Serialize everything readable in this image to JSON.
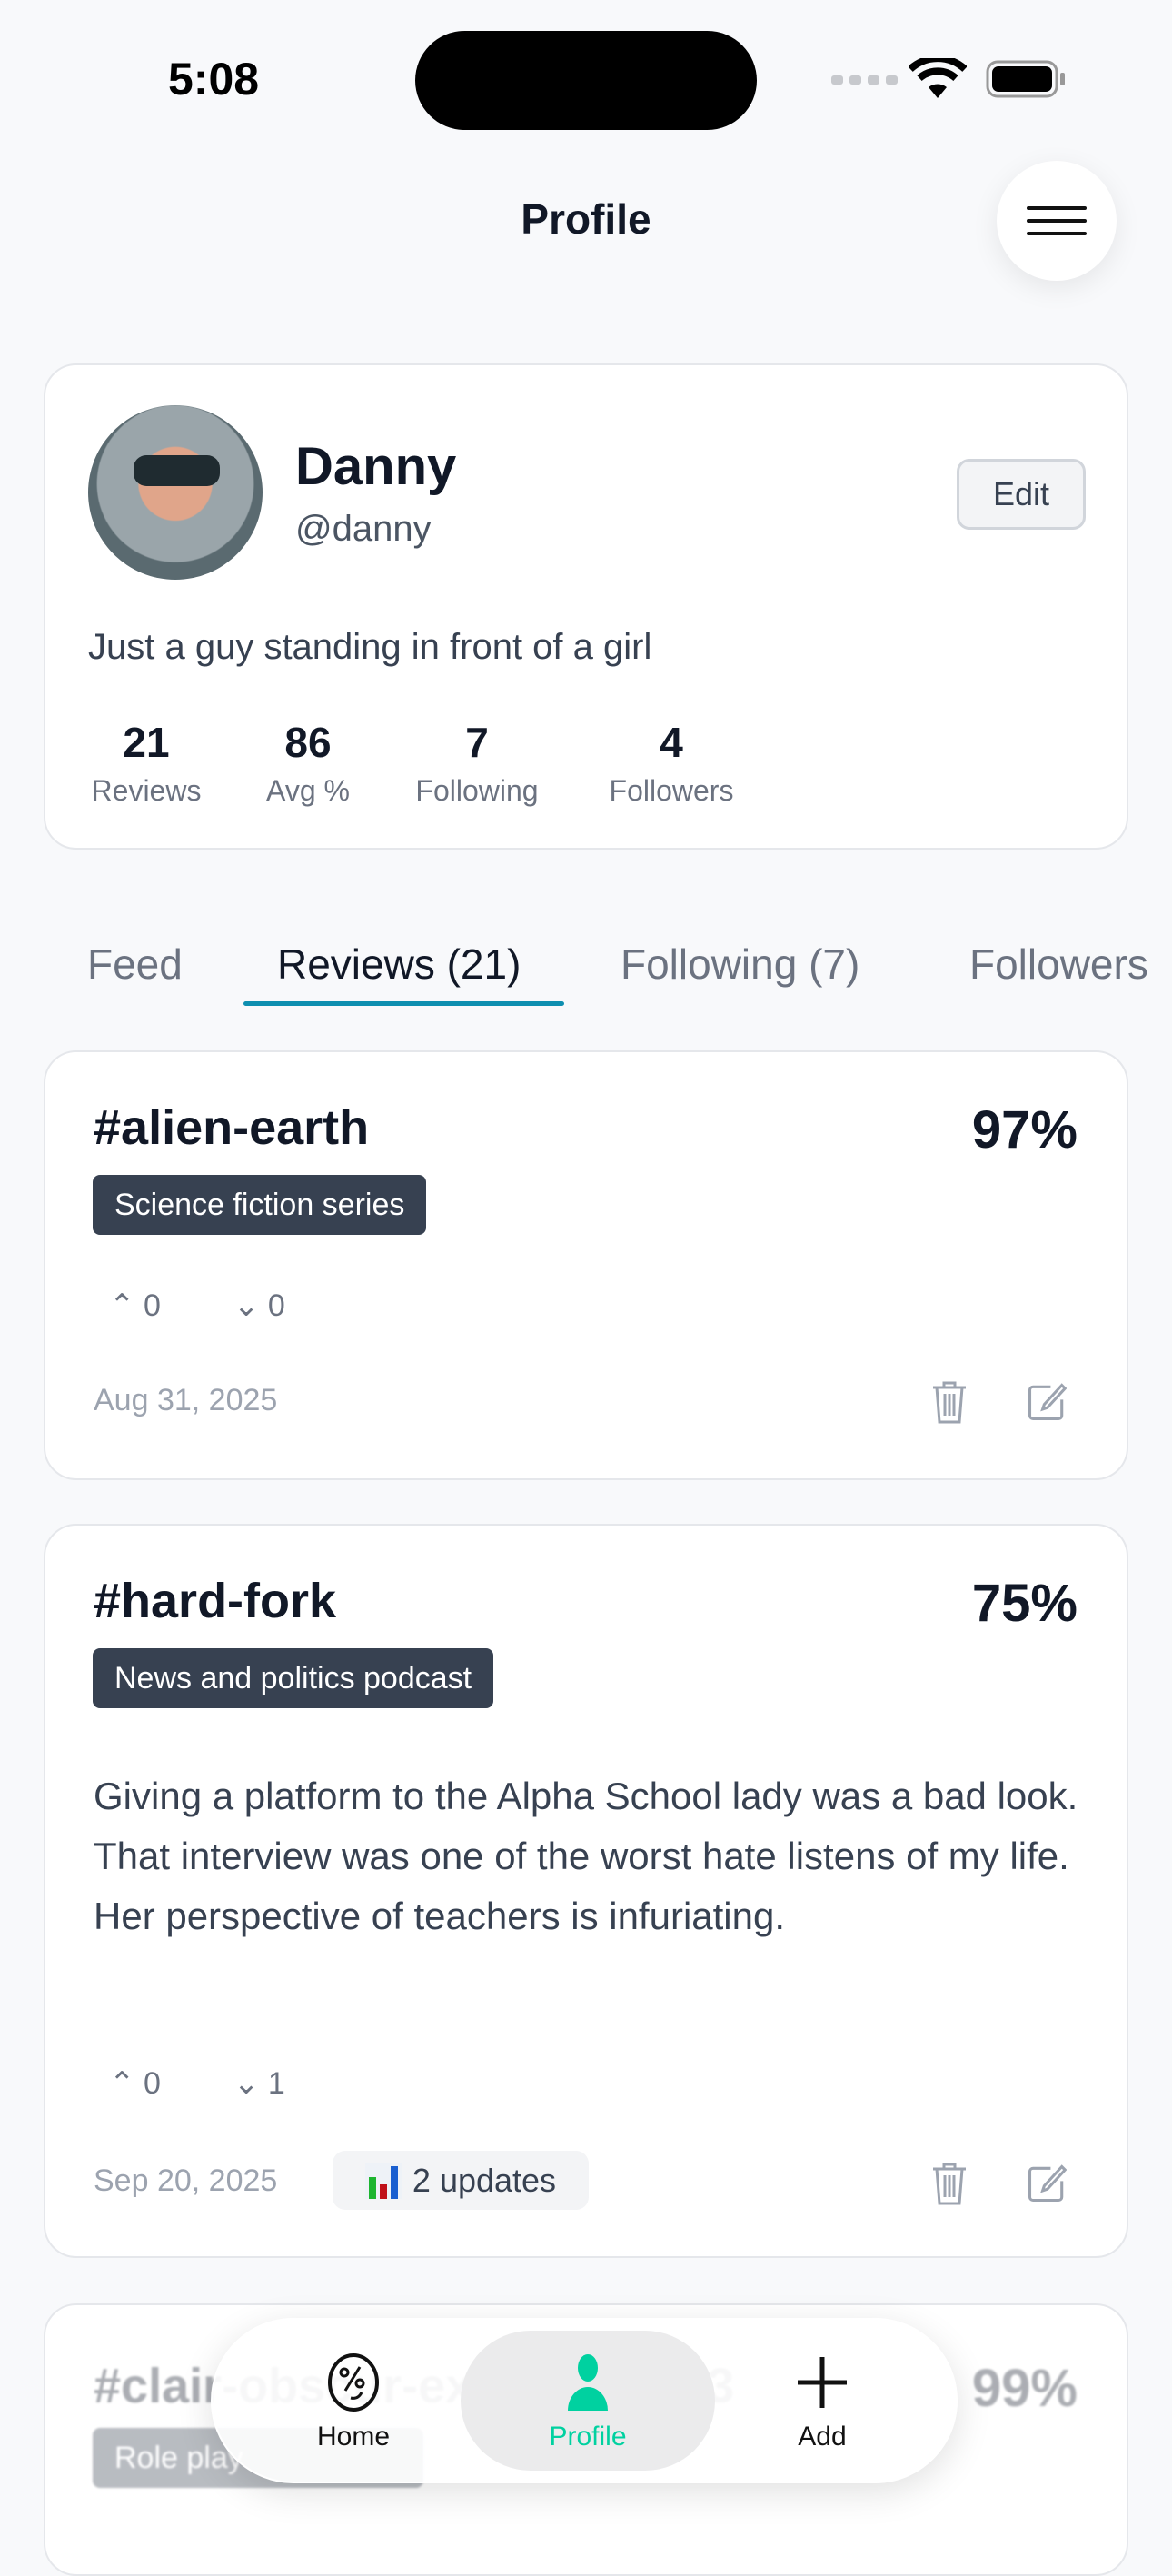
{
  "status": {
    "time": "5:08"
  },
  "header": {
    "title": "Profile",
    "menu_icon": "hamburger-icon"
  },
  "profile": {
    "name": "Danny",
    "handle": "@danny",
    "edit_label": "Edit",
    "bio": "Just a guy standing in front of a girl",
    "stats": [
      {
        "value": "21",
        "label": "Reviews"
      },
      {
        "value": "86",
        "label": "Avg %"
      },
      {
        "value": "7",
        "label": "Following"
      },
      {
        "value": "4",
        "label": "Followers"
      }
    ]
  },
  "tabs": [
    {
      "label": "Feed"
    },
    {
      "label": "Reviews (21)",
      "active": true
    },
    {
      "label": "Following (7)"
    },
    {
      "label": "Followers"
    }
  ],
  "reviews": [
    {
      "title": "#alien-earth",
      "score": "97%",
      "tag": "Science fiction series",
      "up": "0",
      "down": "0",
      "date": "Aug 31, 2025"
    },
    {
      "title": "#hard-fork",
      "score": "75%",
      "tag": "News and politics podcast",
      "body": "Giving a platform to the Alpha School lady was a bad look. That interview was one of the worst hate listens of my life. Her perspective of teachers is infuriating.",
      "up": "0",
      "down": "1",
      "date": "Sep 20, 2025",
      "updates": "2 updates"
    },
    {
      "title": "#clair-obscur-expedition-33",
      "score": "99%",
      "tag": "Role play"
    }
  ],
  "nav": {
    "items": [
      {
        "label": "Home"
      },
      {
        "label": "Profile",
        "active": true
      },
      {
        "label": "Add"
      }
    ]
  },
  "colors": {
    "accent": "#00d1a0",
    "tab_underline": "#0e8fb0",
    "tag_bg": "#374151"
  }
}
